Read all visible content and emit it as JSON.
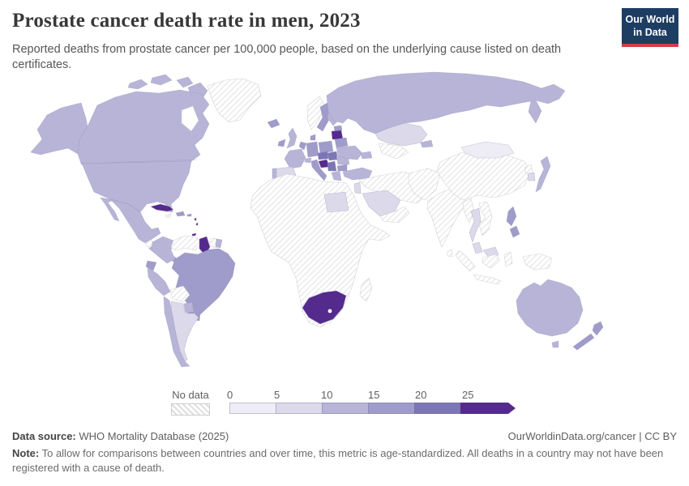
{
  "header": {
    "title": "Prostate cancer death rate in men, 2023",
    "subtitle": "Reported deaths from prostate cancer per 100,000 people, based on the underlying cause listed on death certificates."
  },
  "logo": {
    "line1": "Our World",
    "line2": "in Data",
    "bg_color": "#1d3d63",
    "accent_color": "#d73a49"
  },
  "legend": {
    "no_data_label": "No data",
    "tick_labels": [
      "0",
      "5",
      "10",
      "15",
      "20",
      "25"
    ],
    "colors": [
      "#eeedf5",
      "#dbd9ea",
      "#b7b4d8",
      "#9f9bca",
      "#7d76b6",
      "#552a8d"
    ],
    "hatch_line_color": "#dedede"
  },
  "footer": {
    "source_label": "Data source:",
    "source_text": " WHO Mortality Database (2025)",
    "rights": "OurWorldinData.org/cancer | CC BY",
    "note_label": "Note:",
    "note_text": " To allow for comparisons between countries and over time, this metric is age-standardized. All deaths in a country may not have been registered with a cause of death."
  },
  "chart_data": {
    "type": "choropleth_map",
    "title": "Prostate cancer death rate in men, 2023",
    "year": "2023",
    "unit": "reported deaths from prostate cancer per 100,000 people",
    "bin_edges": [
      0,
      5,
      10,
      15,
      20,
      25
    ],
    "bin_labels": [
      "0–5",
      "5–10",
      "10–15",
      "15–20",
      "20–25",
      "25+"
    ],
    "no_data_label": "No data",
    "border_color": "#9a97b4",
    "no_data_border": "#d2d2d2",
    "countries": {
      "greenland": -1,
      "canada": 2,
      "united-states": 2,
      "mexico": 2,
      "guatemala": -1,
      "honduras-nicaragua": 2,
      "costa-rica-panama": 3,
      "cuba": 5,
      "jamaica": -1,
      "hispaniola": 3,
      "puerto-rico": 3,
      "lesser-antilles": 5,
      "trinidad-and-tobago": 5,
      "colombia": 2,
      "venezuela": -1,
      "guyana": 5,
      "suriname": -1,
      "french-guiana": 2,
      "ecuador": 3,
      "peru": 2,
      "brazil": 3,
      "bolivia": -1,
      "paraguay": 2,
      "chile": 2,
      "argentina": 1,
      "uruguay": 3,
      "iceland": 3,
      "ireland": 3,
      "united-kingdom": 2,
      "norway": -1,
      "sweden": 3,
      "finland": 2,
      "denmark": 3,
      "estonia": 3,
      "latvia-lithuania": 5,
      "poland": 3,
      "germany": 3,
      "benelux": 3,
      "france": 2,
      "spain": 1,
      "portugal": 2,
      "switzerland": 2,
      "italy": 3,
      "czechia-austria": 4,
      "slovenia-croatia": 5,
      "hungary-slovakia": 4,
      "serbia-balkans": 4,
      "romania": 2,
      "bulgaria": 3,
      "greece": 2,
      "belarus": 3,
      "ukraine": 2,
      "russia": 2,
      "kazakhstan": 1,
      "uzbekistan-turkmenistan": -1,
      "kyrgyzstan": 2,
      "caucasus": 2,
      "turkey": 2,
      "syria-iraq-iran": -1,
      "israel-jordan": 1,
      "saudi-arabia": 1,
      "yemen-oman": -1,
      "egypt": 1,
      "africa-other": -1,
      "south-africa": 5,
      "madagascar": -1,
      "afghanistan-pakistan": -1,
      "india": -1,
      "sri-lanka": -1,
      "china": -1,
      "mongolia": 0,
      "north-korea": -1,
      "south-korea": 1,
      "japan": 2,
      "myanmar": -1,
      "thailand": 1,
      "vietnam-laos-cambodia": -1,
      "malaysia": 1,
      "philippines": 3,
      "indonesia": -1,
      "new-guinea": -1,
      "australia": 2,
      "new-zealand": 3
    }
  }
}
